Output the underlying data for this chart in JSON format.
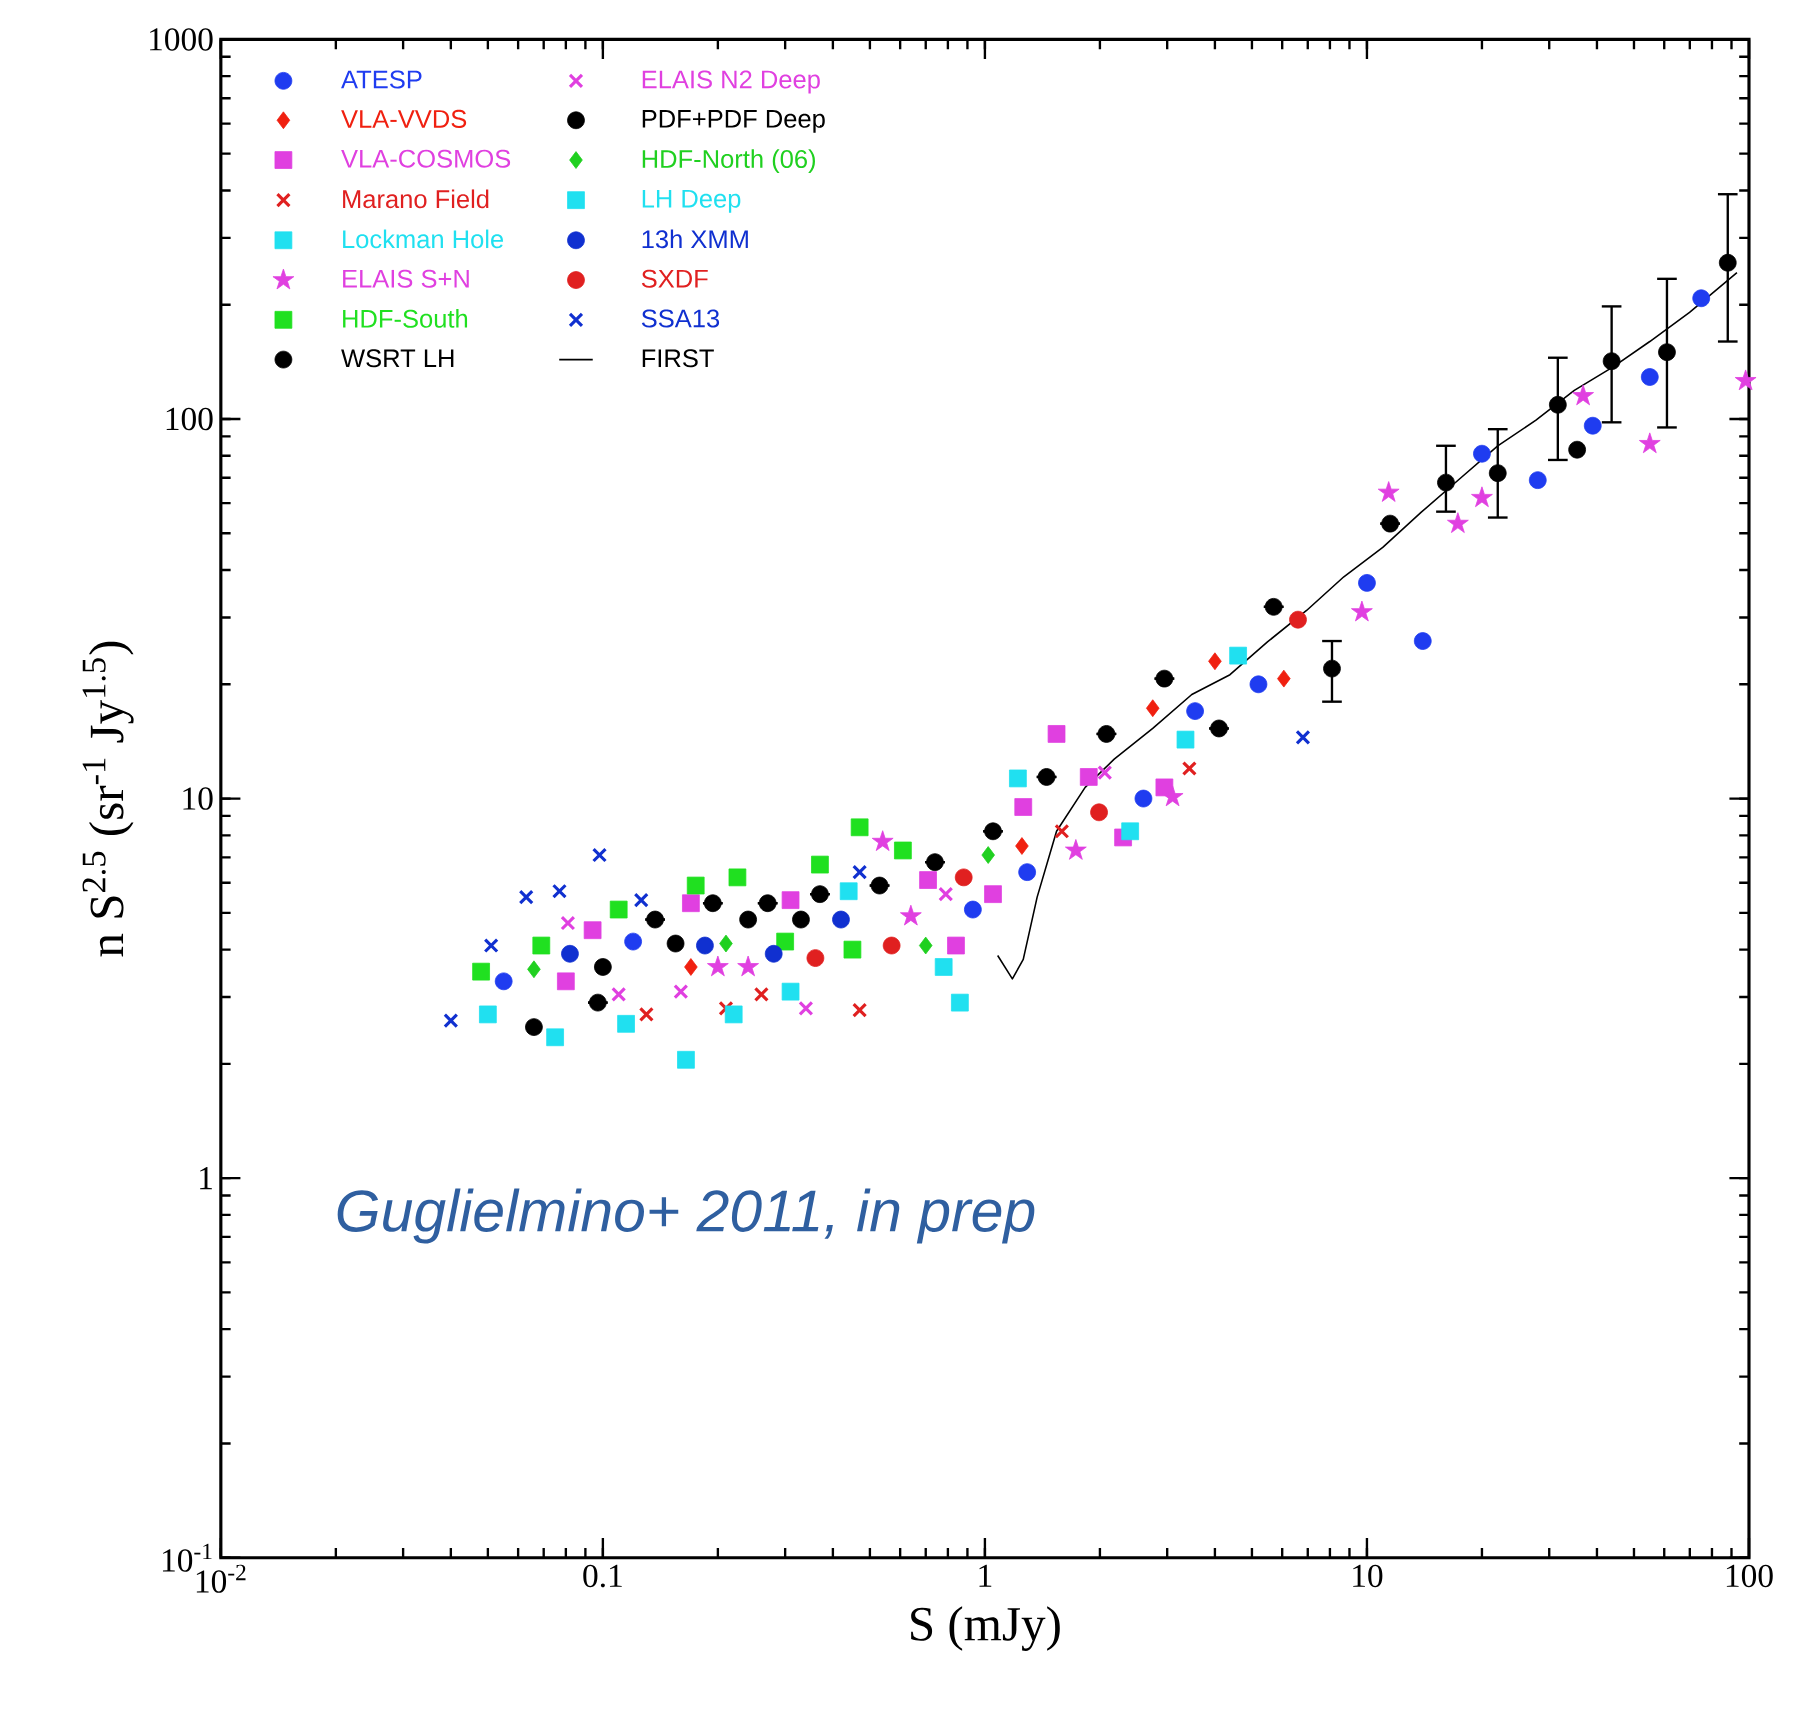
{
  "chart_data": {
    "type": "scatter",
    "xlabel": "S (mJy)",
    "ylabel": "n S$^{2.5}$ (sr$^{-1}$ Jy$^{1.5}$)",
    "log": "xy",
    "xlim": [
      0.01,
      100
    ],
    "ylim": [
      0.1,
      1000
    ],
    "xticks": [
      {
        "value": 0.01,
        "label": "10$^{-2}$"
      },
      0.1,
      1,
      10,
      100
    ],
    "yticks": [
      {
        "value": 0.1,
        "label": "10$^{-1}$"
      },
      1,
      10,
      100,
      1000
    ],
    "legend": "top left",
    "annotations": [
      "Guglielmino+ 2011, in prep"
    ],
    "series": [
      {
        "name": "ATESP",
        "color": "#1f3cf0",
        "marker": "circle",
        "x": [
          0.055,
          0.12,
          0.185,
          0.93,
          1.29,
          2.6,
          3.55,
          5.2,
          10,
          14,
          20,
          28,
          39,
          55,
          75
        ],
        "values": [
          3.3,
          4.2,
          null,
          5.1,
          6.4,
          10,
          17,
          20,
          37,
          26,
          81,
          69,
          96,
          129,
          208
        ]
      },
      {
        "name": "VLA-VVDS",
        "color": "#f02010",
        "marker": "diamond",
        "x": [
          0.17,
          1.25,
          2.75,
          4.0,
          6.06
        ],
        "values": [
          3.6,
          7.5,
          17.3,
          23,
          20.7
        ]
      },
      {
        "name": "VLA-COSMOS",
        "color": "#e040e0",
        "marker": "square",
        "x": [
          0.08,
          0.094,
          0.17,
          0.31,
          0.71,
          0.84,
          1.05,
          1.26,
          1.54,
          1.87,
          2.3,
          2.95
        ],
        "values": [
          3.3,
          4.5,
          5.3,
          5.4,
          6.1,
          4.1,
          5.6,
          9.5,
          14.8,
          11.4,
          7.9,
          10.7
        ]
      },
      {
        "name": "Marano Field",
        "color": "#e02020",
        "marker": "cross",
        "x": [
          0.13,
          0.21,
          0.26,
          0.47,
          1.59,
          3.43
        ],
        "values": [
          2.7,
          2.8,
          3.05,
          2.77,
          8.2,
          12
        ]
      },
      {
        "name": "Lockman Hole",
        "color": "#20e0f0",
        "marker": "square",
        "x": [
          0.05,
          0.075,
          0.115,
          0.165,
          0.22,
          0.31,
          0.86
        ],
        "values": [
          2.7,
          2.35,
          2.55,
          2.05,
          2.7,
          3.1,
          2.9
        ]
      },
      {
        "name": "ELAIS S+N",
        "color": "#e040e0",
        "marker": "star",
        "x": [
          0.2,
          0.24,
          0.54,
          0.64,
          1.73,
          3.1,
          9.7,
          11.4,
          17.3,
          20,
          36.8,
          55,
          98
        ],
        "values": [
          3.6,
          3.6,
          7.7,
          4.9,
          7.3,
          10.1,
          31,
          64,
          53,
          62,
          115,
          86,
          126
        ]
      },
      {
        "name": "HDF-South",
        "color": "#20e020",
        "marker": "square",
        "x": [
          0.048,
          0.069,
          0.11,
          0.175,
          0.225,
          0.3,
          0.37,
          0.45,
          0.47,
          0.61
        ],
        "values": [
          3.5,
          4.1,
          5.1,
          5.9,
          6.2,
          4.2,
          6.7,
          4.0,
          8.4,
          7.3
        ]
      },
      {
        "name": "WSRT LH",
        "color": "#000000",
        "marker": "circle",
        "x": [
          0.097,
          0.137,
          0.194,
          0.27,
          0.37,
          0.53,
          0.74,
          1.05,
          1.45,
          2.08,
          2.95,
          4.1,
          5.7,
          8.1,
          11.5,
          16.1,
          22,
          31.6,
          43.7,
          61,
          88
        ],
        "values": [
          2.9,
          4.8,
          5.3,
          5.3,
          5.6,
          5.9,
          6.8,
          8.2,
          11.4,
          14.8,
          20.7,
          15.3,
          32,
          22,
          53,
          68,
          72,
          109,
          142,
          150,
          258
        ],
        "errors": [
          null,
          null,
          null,
          null,
          null,
          null,
          null,
          null,
          null,
          null,
          null,
          null,
          null,
          [
            18,
            26
          ],
          null,
          [
            57,
            85
          ],
          [
            55,
            94
          ],
          [
            78,
            145
          ],
          [
            98,
            198
          ],
          [
            95,
            234
          ],
          [
            160,
            391
          ]
        ]
      },
      {
        "name": "ELAIS N2 Deep",
        "color": "#e040e0",
        "marker": "cross",
        "x": [
          0.081,
          0.11,
          0.16,
          0.34,
          0.79,
          2.06
        ],
        "values": [
          4.7,
          3.05,
          3.1,
          2.8,
          5.6,
          11.7
        ]
      },
      {
        "name": "PDF+PDF Deep",
        "color": "#000000",
        "marker": "circle",
        "x": [
          0.066,
          0.1,
          0.155,
          0.24,
          0.33,
          35.5
        ],
        "values": [
          2.5,
          3.6,
          4.15,
          4.8,
          4.8,
          83
        ]
      },
      {
        "name": "HDF-North (06)",
        "color": "#20d020",
        "marker": "diamond",
        "x": [
          0.066,
          0.21,
          0.7,
          1.02
        ],
        "values": [
          3.55,
          4.15,
          4.1,
          7.1
        ]
      },
      {
        "name": "LH Deep",
        "color": "#20e0f0",
        "marker": "square",
        "x": [
          0.44,
          0.78,
          1.22,
          2.4,
          3.35,
          4.6
        ],
        "values": [
          5.7,
          3.6,
          11.3,
          8.2,
          14.3,
          23.8
        ]
      },
      {
        "name": "13h XMM",
        "color": "#1030d0",
        "marker": "circle",
        "x": [
          0.082,
          0.185,
          0.28,
          0.42
        ],
        "values": [
          3.9,
          4.1,
          3.9,
          4.8
        ]
      },
      {
        "name": "SXDF",
        "color": "#e02020",
        "marker": "circle",
        "x": [
          0.36,
          0.57,
          0.88,
          1.99,
          6.6
        ],
        "values": [
          3.8,
          4.1,
          6.2,
          9.2,
          29.6
        ]
      },
      {
        "name": "SSA13",
        "color": "#1030d0",
        "marker": "cross",
        "x": [
          0.04,
          0.051,
          0.063,
          0.077,
          0.098,
          0.126,
          0.47,
          6.8
        ],
        "values": [
          2.6,
          4.1,
          5.5,
          5.7,
          7.1,
          5.4,
          6.4,
          14.5
        ]
      },
      {
        "name": "FIRST",
        "color": "#000000",
        "type": "line",
        "marker": "none",
        "x": [
          1.08,
          1.18,
          1.26,
          1.37,
          1.54,
          1.83,
          2.18,
          2.75,
          3.48,
          4.38,
          5.5,
          6.95,
          8.7,
          11,
          13.9,
          17.5,
          22,
          27.7,
          34.9,
          44,
          55,
          69.9,
          93
        ],
        "values": [
          3.86,
          3.35,
          3.77,
          5.5,
          8.2,
          10.7,
          12.7,
          15.3,
          18.8,
          21.2,
          25.9,
          31.3,
          38.4,
          45.9,
          56.9,
          69.6,
          85,
          99.3,
          119,
          137,
          160,
          191,
          243
        ]
      }
    ]
  }
}
